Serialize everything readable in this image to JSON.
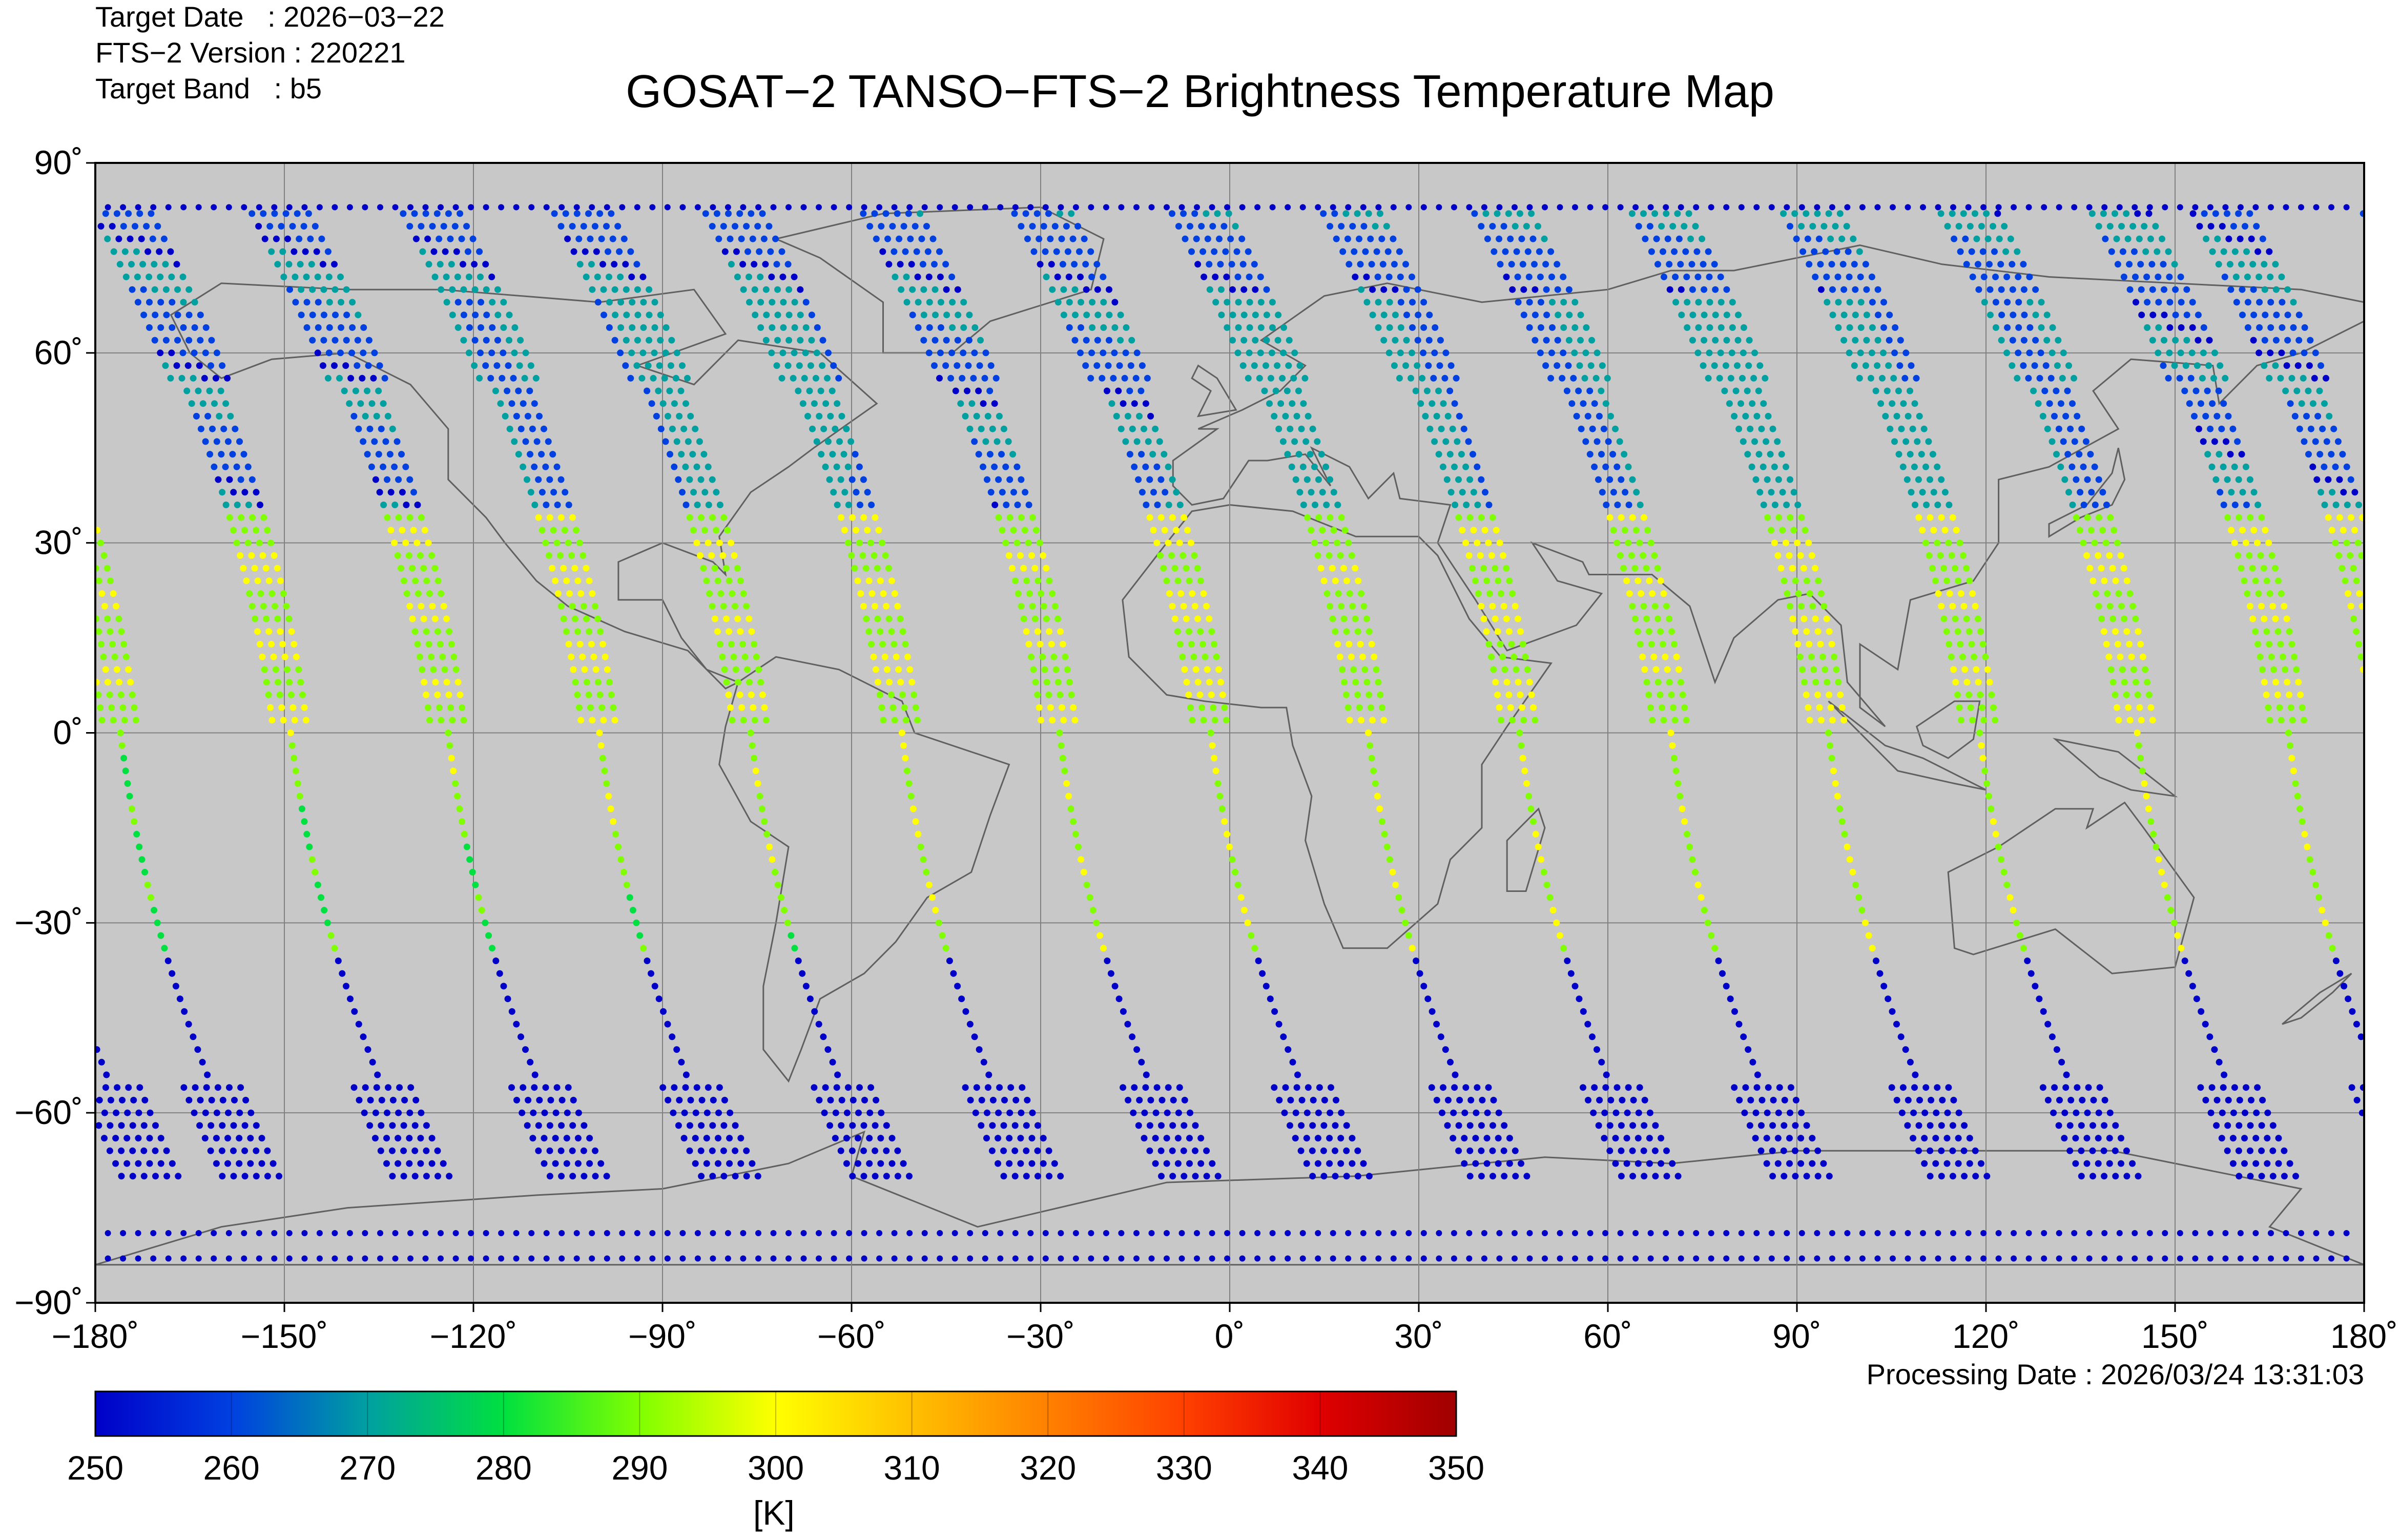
{
  "meta": {
    "target_date": "Target Date   : 2026−03−22",
    "version": "FTS−2 Version : 220221",
    "band": "Target Band   : b5"
  },
  "title": "GOSAT−2 TANSO−FTS−2 Brightness Temperature Map",
  "processing_date": "Processing Date : 2026/03/24 13:31:03",
  "colorbar": {
    "unit_label": "[K]",
    "min": 250,
    "max": 350,
    "tick_values": [
      250,
      260,
      270,
      280,
      290,
      300,
      310,
      320,
      330,
      340,
      350
    ],
    "tick_labels": [
      "250",
      "260",
      "270",
      "280",
      "290",
      "300",
      "310",
      "320",
      "330",
      "340",
      "350"
    ],
    "colors": [
      "#0000c8",
      "#0040e0",
      "#00a0a0",
      "#00e040",
      "#80ff00",
      "#ffff00",
      "#ffc000",
      "#ff8000",
      "#ff4000",
      "#e00000",
      "#a00000"
    ]
  },
  "map": {
    "background": "#c8c8c8",
    "coastline_color": "#606060",
    "grid_color": "#808080",
    "lon_ticks": [
      -180,
      -150,
      -120,
      -90,
      -60,
      -30,
      0,
      30,
      60,
      90,
      120,
      150,
      180
    ],
    "lon_labels": [
      "−180˚",
      "−150˚",
      "−120˚",
      "−90˚",
      "−60˚",
      "−30˚",
      "0˚",
      "30˚",
      "60˚",
      "90˚",
      "120˚",
      "150˚",
      "180˚"
    ],
    "lat_ticks": [
      90,
      60,
      30,
      0,
      -30,
      -60,
      -90
    ],
    "lat_labels": [
      "90˚",
      "60˚",
      "30˚",
      "0˚",
      "−30˚",
      "−60˚",
      "−90˚"
    ],
    "orbit_tracks": [
      {
        "lon_eq": -176,
        "lat_range": [
          -70,
          83
        ]
      },
      {
        "lon_eq": -149,
        "lat_range": [
          -70,
          83
        ]
      },
      {
        "lon_eq": -124,
        "lat_range": [
          -70,
          83
        ]
      },
      {
        "lon_eq": -100,
        "lat_range": [
          -70,
          83
        ]
      },
      {
        "lon_eq": -76,
        "lat_range": [
          -70,
          83
        ]
      },
      {
        "lon_eq": -52,
        "lat_range": [
          -70,
          83
        ]
      },
      {
        "lon_eq": -27,
        "lat_range": [
          -70,
          83
        ]
      },
      {
        "lon_eq": -3,
        "lat_range": [
          -70,
          83
        ]
      },
      {
        "lon_eq": 22,
        "lat_range": [
          -70,
          83
        ]
      },
      {
        "lon_eq": 46,
        "lat_range": [
          -70,
          83
        ]
      },
      {
        "lon_eq": 70,
        "lat_range": [
          -70,
          83
        ]
      },
      {
        "lon_eq": 95,
        "lat_range": [
          -70,
          83
        ]
      },
      {
        "lon_eq": 119,
        "lat_range": [
          -70,
          83
        ]
      },
      {
        "lon_eq": 144,
        "lat_range": [
          -70,
          83
        ]
      },
      {
        "lon_eq": 168,
        "lat_range": [
          -70,
          83
        ]
      }
    ]
  }
}
